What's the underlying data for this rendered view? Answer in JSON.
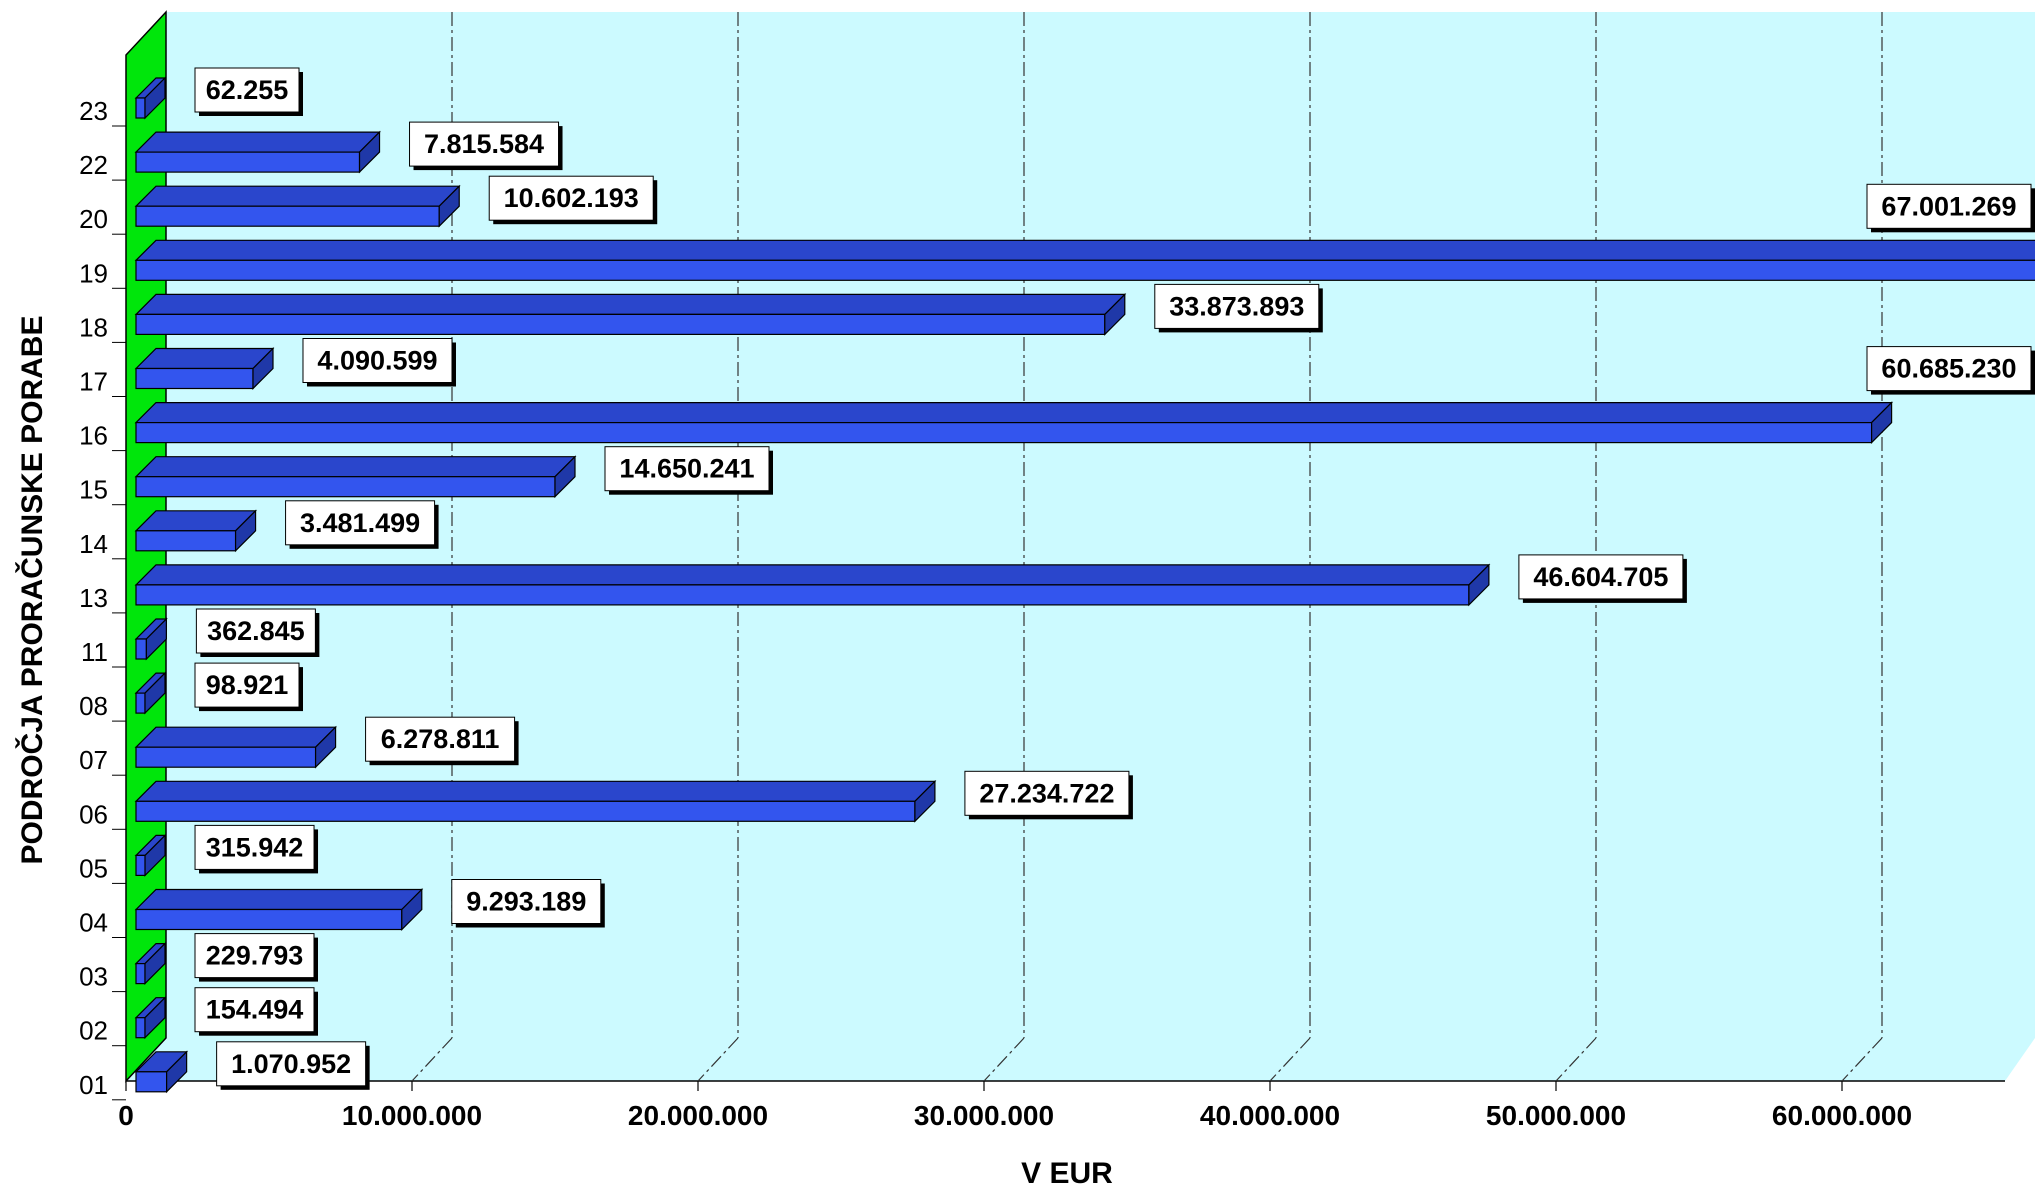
{
  "chart_data": {
    "type": "bar",
    "orientation": "horizontal",
    "three_d": true,
    "title": "",
    "xlabel": "V  EUR",
    "ylabel": "PODROČJA PRORAČUNSKE PORABE",
    "xlim": [
      0,
      66000000
    ],
    "xticks": [
      0,
      10000000,
      20000000,
      30000000,
      40000000,
      50000000,
      60000000
    ],
    "xtick_labels": [
      "0",
      "10.000.000",
      "20.000.000",
      "30.000.000",
      "40.000.000",
      "50.000.000",
      "60.000.000"
    ],
    "grid": true,
    "legend": "none",
    "categories": [
      "01",
      "02",
      "03",
      "04",
      "05",
      "06",
      "07",
      "08",
      "11",
      "13",
      "14",
      "15",
      "16",
      "17",
      "18",
      "19",
      "20",
      "22",
      "23"
    ],
    "values": [
      1070952,
      154494,
      229793,
      9293189,
      315942,
      27234722,
      6278811,
      98921,
      362845,
      46604705,
      3481499,
      14650241,
      60685230,
      4090599,
      33873893,
      67001269,
      10602193,
      7815584,
      62255
    ],
    "value_labels": [
      "1.070.952",
      "154.494",
      "229.793",
      "9.293.189",
      "315.942",
      "27.234.722",
      "6.278.811",
      "98.921",
      "362.845",
      "46.604.705",
      "3.481.499",
      "14.650.241",
      "60.685.230",
      "4.090.599",
      "33.873.893",
      "67.001.269",
      "10.602.193",
      "7.815.584",
      "62.255"
    ],
    "colors": {
      "bar_front": "#3355ee",
      "bar_top": "#2a46cc",
      "bar_side": "#1f38a8",
      "back_wall": "#ccfaff",
      "side_wall": "#00e60b",
      "label_box": "#ffffff"
    }
  }
}
